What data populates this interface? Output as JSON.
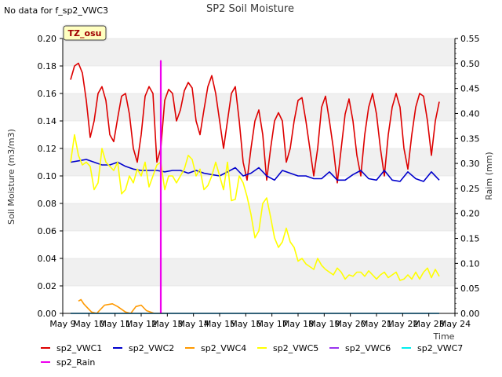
{
  "notice": "No data for f_sp2_VWC3",
  "badge": "TZ_osu",
  "chart_data": {
    "type": "line",
    "title": "SP2 Soil Moisture",
    "xlabel": "Time",
    "ylabel": "Soil Moisture (m3/m3)",
    "y2label": "Raim (mm)",
    "xlim": [
      9,
      24
    ],
    "ylim": [
      0.0,
      0.2
    ],
    "y2lim": [
      0.0,
      0.55
    ],
    "x_ticks": [
      "May 9",
      "May 10",
      "May 11",
      "May 12",
      "May 13",
      "May 14",
      "May 15",
      "May 16",
      "May 17",
      "May 18",
      "May 19",
      "May 20",
      "May 21",
      "May 22",
      "May 23",
      "May 24"
    ],
    "y_ticks": [
      "0.00",
      "0.02",
      "0.04",
      "0.06",
      "0.08",
      "0.10",
      "0.12",
      "0.14",
      "0.16",
      "0.18",
      "0.20"
    ],
    "y2_ticks": [
      "0.00",
      "0.05",
      "0.10",
      "0.15",
      "0.20",
      "0.25",
      "0.30",
      "0.35",
      "0.40",
      "0.45",
      "0.50",
      "0.55"
    ],
    "grid": "horizontal bands",
    "legend_position": "bottom",
    "series": [
      {
        "name": "sp2_VWC1",
        "color": "#dd0000",
        "axis": "left",
        "x": [
          9.3,
          9.45,
          9.6,
          9.75,
          9.9,
          10.05,
          10.2,
          10.35,
          10.5,
          10.65,
          10.8,
          10.95,
          11.1,
          11.25,
          11.4,
          11.55,
          11.7,
          11.85,
          12.0,
          12.15,
          12.3,
          12.45,
          12.6,
          12.75,
          12.9,
          13.05,
          13.2,
          13.35,
          13.5,
          13.65,
          13.8,
          13.95,
          14.1,
          14.25,
          14.4,
          14.55,
          14.7,
          14.85,
          15.0,
          15.15,
          15.3,
          15.45,
          15.6,
          15.75,
          15.9,
          16.05,
          16.2,
          16.35,
          16.5,
          16.65,
          16.8,
          16.95,
          17.1,
          17.25,
          17.4,
          17.55,
          17.7,
          17.85,
          18.0,
          18.15,
          18.3,
          18.45,
          18.6,
          18.75,
          18.9,
          19.05,
          19.2,
          19.35,
          19.5,
          19.65,
          19.8,
          19.95,
          20.1,
          20.25,
          20.4,
          20.55,
          20.7,
          20.85,
          21.0,
          21.15,
          21.3,
          21.45,
          21.6,
          21.75,
          21.9,
          22.05,
          22.2,
          22.35,
          22.5,
          22.65,
          22.8,
          22.95,
          23.1,
          23.25,
          23.4
        ],
        "y": [
          0.17,
          0.18,
          0.182,
          0.175,
          0.155,
          0.128,
          0.14,
          0.16,
          0.165,
          0.155,
          0.13,
          0.125,
          0.142,
          0.158,
          0.16,
          0.145,
          0.12,
          0.11,
          0.13,
          0.158,
          0.165,
          0.16,
          0.11,
          0.12,
          0.155,
          0.163,
          0.16,
          0.14,
          0.148,
          0.162,
          0.168,
          0.164,
          0.14,
          0.13,
          0.148,
          0.165,
          0.173,
          0.16,
          0.14,
          0.12,
          0.14,
          0.16,
          0.165,
          0.14,
          0.11,
          0.097,
          0.12,
          0.14,
          0.148,
          0.13,
          0.097,
          0.12,
          0.14,
          0.146,
          0.14,
          0.11,
          0.12,
          0.14,
          0.155,
          0.157,
          0.14,
          0.12,
          0.1,
          0.12,
          0.15,
          0.158,
          0.14,
          0.12,
          0.095,
          0.12,
          0.145,
          0.156,
          0.14,
          0.115,
          0.1,
          0.13,
          0.15,
          0.16,
          0.145,
          0.12,
          0.1,
          0.13,
          0.15,
          0.16,
          0.15,
          0.12,
          0.105,
          0.13,
          0.15,
          0.16,
          0.158,
          0.14,
          0.115,
          0.14,
          0.154
        ]
      },
      {
        "name": "sp2_VWC2",
        "color": "#0000cc",
        "axis": "left",
        "x": [
          9.3,
          9.6,
          9.9,
          10.2,
          10.5,
          10.8,
          11.1,
          11.4,
          11.7,
          12.0,
          12.3,
          12.6,
          12.9,
          13.2,
          13.5,
          13.8,
          14.1,
          14.4,
          14.7,
          15.0,
          15.3,
          15.6,
          15.9,
          16.2,
          16.5,
          16.8,
          17.1,
          17.4,
          17.7,
          18.0,
          18.3,
          18.6,
          18.9,
          19.2,
          19.5,
          19.8,
          20.1,
          20.4,
          20.7,
          21.0,
          21.3,
          21.6,
          21.9,
          22.2,
          22.5,
          22.8,
          23.1,
          23.4
        ],
        "y": [
          0.11,
          0.111,
          0.112,
          0.11,
          0.108,
          0.108,
          0.11,
          0.107,
          0.105,
          0.104,
          0.104,
          0.104,
          0.103,
          0.104,
          0.104,
          0.102,
          0.104,
          0.102,
          0.101,
          0.1,
          0.103,
          0.106,
          0.1,
          0.102,
          0.106,
          0.1,
          0.097,
          0.104,
          0.102,
          0.1,
          0.1,
          0.098,
          0.098,
          0.103,
          0.097,
          0.097,
          0.101,
          0.104,
          0.098,
          0.097,
          0.104,
          0.097,
          0.096,
          0.103,
          0.098,
          0.096,
          0.103,
          0.097
        ]
      },
      {
        "name": "sp2_VWC4",
        "color": "#ff9900",
        "axis": "left",
        "x": [
          9.6,
          9.7,
          9.8,
          9.9,
          10.1,
          10.3,
          10.6,
          10.9,
          11.1,
          11.4,
          11.6,
          11.8,
          12.0,
          12.2,
          12.5,
          12.7,
          13.0
        ],
        "y": [
          0.009,
          0.01,
          0.007,
          0.005,
          0.001,
          0.0,
          0.006,
          0.007,
          0.005,
          0.001,
          0.0,
          0.005,
          0.006,
          0.002,
          0.0,
          0.0,
          0.0
        ]
      },
      {
        "name": "sp2_VWC5",
        "color": "#ffff00",
        "axis": "left",
        "x": [
          9.3,
          9.45,
          9.6,
          9.75,
          9.9,
          10.05,
          10.2,
          10.35,
          10.5,
          10.65,
          10.8,
          10.95,
          11.1,
          11.25,
          11.4,
          11.55,
          11.7,
          11.85,
          12.0,
          12.15,
          12.3,
          12.45,
          12.6,
          12.75,
          12.9,
          13.05,
          13.2,
          13.35,
          13.5,
          13.65,
          13.8,
          13.95,
          14.1,
          14.25,
          14.4,
          14.55,
          14.7,
          14.85,
          15.0,
          15.15,
          15.3,
          15.45,
          15.6,
          15.75,
          15.9,
          16.05,
          16.2,
          16.35,
          16.5,
          16.65,
          16.8,
          16.95,
          17.1,
          17.25,
          17.4,
          17.55,
          17.7,
          17.85,
          18.0,
          18.15,
          18.3,
          18.45,
          18.6,
          18.75,
          18.9,
          19.05,
          19.2,
          19.35,
          19.5,
          19.65,
          19.8,
          19.95,
          20.1,
          20.25,
          20.4,
          20.55,
          20.7,
          20.85,
          21.0,
          21.15,
          21.3,
          21.45,
          21.6,
          21.75,
          21.9,
          22.05,
          22.2,
          22.35,
          22.5,
          22.65,
          22.8,
          22.95,
          23.1,
          23.25,
          23.4
        ],
        "y": [
          0.11,
          0.13,
          0.115,
          0.108,
          0.11,
          0.107,
          0.09,
          0.095,
          0.12,
          0.11,
          0.107,
          0.104,
          0.11,
          0.087,
          0.09,
          0.1,
          0.095,
          0.105,
          0.1,
          0.11,
          0.092,
          0.1,
          0.108,
          0.11,
          0.09,
          0.1,
          0.1,
          0.095,
          0.1,
          0.105,
          0.115,
          0.112,
          0.1,
          0.105,
          0.09,
          0.093,
          0.1,
          0.11,
          0.1,
          0.09,
          0.11,
          0.082,
          0.083,
          0.1,
          0.095,
          0.085,
          0.072,
          0.055,
          0.06,
          0.08,
          0.084,
          0.07,
          0.055,
          0.048,
          0.052,
          0.062,
          0.052,
          0.048,
          0.038,
          0.04,
          0.036,
          0.034,
          0.032,
          0.04,
          0.035,
          0.032,
          0.03,
          0.028,
          0.033,
          0.03,
          0.025,
          0.028,
          0.027,
          0.03,
          0.03,
          0.027,
          0.031,
          0.028,
          0.025,
          0.028,
          0.03,
          0.026,
          0.028,
          0.03,
          0.024,
          0.025,
          0.028,
          0.025,
          0.03,
          0.025,
          0.03,
          0.033,
          0.026,
          0.032,
          0.027
        ]
      },
      {
        "name": "sp2_VWC6",
        "color": "#9933ee",
        "axis": "left",
        "x": [
          9.3,
          23.4
        ],
        "y": [
          0.0,
          0.0
        ]
      },
      {
        "name": "sp2_VWC7",
        "color": "#00eeee",
        "axis": "left",
        "x": [
          9.3,
          23.4
        ],
        "y": [
          0.0,
          0.0
        ]
      },
      {
        "name": "sp2_Rain",
        "color": "#ee00ee",
        "axis": "right",
        "x": [
          12.75,
          12.75,
          12.75
        ],
        "y": [
          0.0,
          0.505,
          0.0
        ]
      }
    ]
  }
}
